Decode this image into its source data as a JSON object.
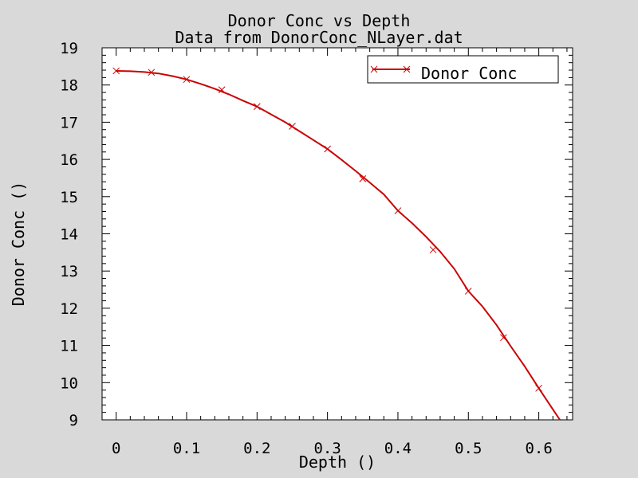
{
  "chart_data": {
    "type": "line",
    "title": "Donor Conc vs Depth",
    "subtitle": "Data from DonorConc_NLayer.dat",
    "xlabel": "Depth ()",
    "ylabel": "Donor Conc ()",
    "xlim": [
      -0.02,
      0.648
    ],
    "ylim": [
      9,
      19
    ],
    "xticks": [
      0,
      0.1,
      0.2,
      0.3,
      0.4,
      0.5,
      0.6
    ],
    "xtick_labels": [
      "0",
      "0.1",
      "0.2",
      "0.3",
      "0.4",
      "0.5",
      "0.6"
    ],
    "yticks": [
      9,
      10,
      11,
      12,
      13,
      14,
      15,
      16,
      17,
      18,
      19
    ],
    "ytick_labels": [
      "9",
      "10",
      "11",
      "12",
      "13",
      "14",
      "15",
      "16",
      "17",
      "18",
      "19"
    ],
    "grid": false,
    "legend_position": "top-right",
    "series": [
      {
        "name": "Donor Conc",
        "color": "#cc0000",
        "marker": "x",
        "line_x": [
          0,
          0.02,
          0.04,
          0.06,
          0.08,
          0.1,
          0.12,
          0.14,
          0.16,
          0.18,
          0.2,
          0.22,
          0.24,
          0.26,
          0.28,
          0.3,
          0.32,
          0.34,
          0.36,
          0.38,
          0.4,
          0.42,
          0.44,
          0.46,
          0.48,
          0.5,
          0.52,
          0.54,
          0.56,
          0.58,
          0.6,
          0.62,
          0.63
        ],
        "line_y": [
          18.38,
          18.37,
          18.35,
          18.31,
          18.24,
          18.15,
          18.03,
          17.9,
          17.75,
          17.58,
          17.42,
          17.21,
          17.0,
          16.76,
          16.52,
          16.28,
          15.99,
          15.69,
          15.38,
          15.06,
          14.62,
          14.29,
          13.92,
          13.52,
          13.06,
          12.46,
          12.05,
          11.55,
          10.98,
          10.44,
          9.85,
          9.28,
          9.0
        ],
        "marker_x": [
          0,
          0.05,
          0.1,
          0.15,
          0.2,
          0.25,
          0.3,
          0.35,
          0.4,
          0.45,
          0.5,
          0.55,
          0.6
        ],
        "marker_y": [
          18.38,
          18.34,
          18.15,
          17.87,
          17.42,
          16.89,
          16.28,
          15.48,
          14.62,
          13.57,
          12.46,
          11.21,
          9.85
        ]
      }
    ]
  }
}
